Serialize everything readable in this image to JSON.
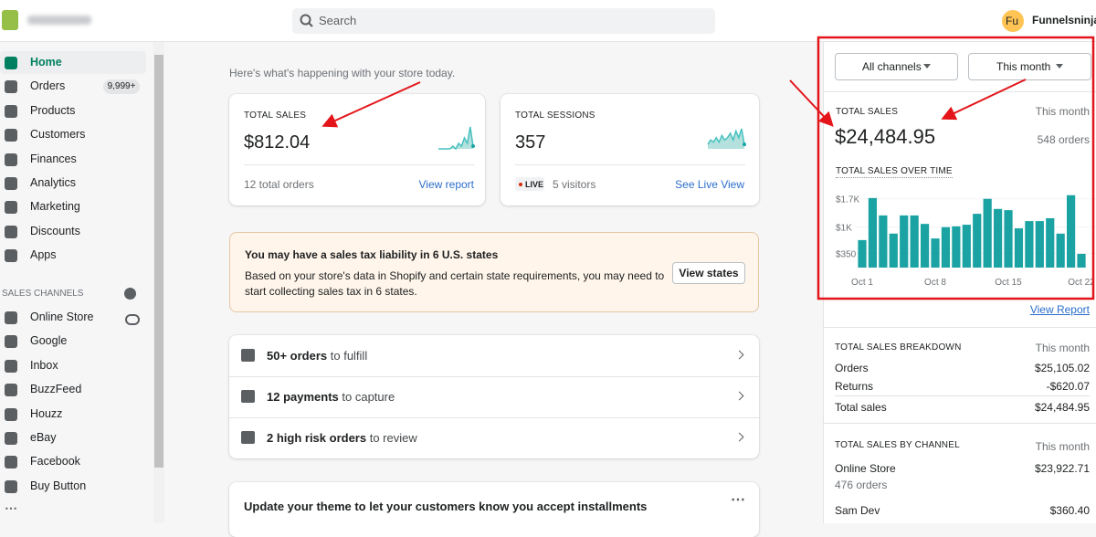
{
  "header": {
    "search_placeholder": "Search",
    "avatar_initials": "Fu",
    "user_name": "Funnelsninja"
  },
  "sidebar": {
    "nav": [
      {
        "label": "Home"
      },
      {
        "label": "Orders",
        "badge": "9,999+"
      },
      {
        "label": "Products"
      },
      {
        "label": "Customers"
      },
      {
        "label": "Finances"
      },
      {
        "label": "Analytics"
      },
      {
        "label": "Marketing"
      },
      {
        "label": "Discounts"
      },
      {
        "label": "Apps"
      }
    ],
    "sales_channels_heading": "SALES CHANNELS",
    "channels": [
      "Online Store",
      "Google",
      "Inbox",
      "BuzzFeed",
      "Houzz",
      "eBay",
      "Facebook",
      "Buy Button"
    ]
  },
  "main": {
    "greeting": "Here's what's happening with your store today.",
    "cards": [
      {
        "label": "TOTAL SALES",
        "value": "$812.04",
        "footer": "12 total orders",
        "link": "View report",
        "sparkline": [
          0,
          0,
          0,
          0,
          0,
          1,
          0,
          2,
          1,
          4,
          2,
          8,
          1
        ]
      },
      {
        "label": "TOTAL SESSIONS",
        "value": "357",
        "live_badge": "LIVE",
        "footer": "5 visitors",
        "link": "See Live View",
        "sparkline": [
          2,
          4,
          3,
          5,
          3,
          6,
          4,
          5,
          7,
          4,
          8,
          5,
          9,
          2
        ]
      }
    ],
    "banner": {
      "title": "You may have a sales tax liability in 6 U.S. states",
      "body": "Based on your store's data in Shopify and certain state requirements, you may need to start collecting sales tax in 6 states.",
      "button": "View states"
    },
    "tasks": [
      {
        "bold": "50+ orders",
        "rest": "to fulfill"
      },
      {
        "bold": "12 payments",
        "rest": "to capture"
      },
      {
        "bold": "2 high risk orders",
        "rest": "to review"
      }
    ],
    "theme_card": {
      "title": "Update your theme to let your customers know you accept installments"
    }
  },
  "right_panel": {
    "filters": [
      "All channels",
      "This month"
    ],
    "total_sales": {
      "label": "TOTAL SALES",
      "period": "This month",
      "value": "$24,484.95",
      "orders": "548 orders"
    },
    "chart": {
      "type": "bar",
      "title": "TOTAL SALES OVER TIME",
      "categories": [
        "Oct 1",
        null,
        null,
        null,
        null,
        null,
        null,
        "Oct 8",
        null,
        null,
        null,
        null,
        null,
        null,
        "Oct 15",
        null,
        null,
        null,
        null,
        null,
        null,
        "Oct 22"
      ],
      "values": [
        680,
        1720,
        1290,
        840,
        1290,
        1290,
        1080,
        720,
        1000,
        1020,
        1060,
        1330,
        1700,
        1450,
        1420,
        970,
        1150,
        1150,
        1220,
        840,
        1790,
        340
      ],
      "color": "#1ba3a3",
      "ylim": [
        0,
        2100
      ],
      "yticks": [
        {
          "value": 350,
          "label": "$350"
        },
        {
          "value": 1000,
          "label": "$1K"
        },
        {
          "value": 1700,
          "label": "$1.7K"
        }
      ]
    },
    "view_report": "View Report",
    "breakdown": {
      "title": "TOTAL SALES BREAKDOWN",
      "period": "This month",
      "rows": [
        [
          "Orders",
          "$25,105.02"
        ],
        [
          "Returns",
          "-$620.07"
        ],
        [
          "Total sales",
          "$24,484.95"
        ]
      ]
    },
    "by_channel": {
      "title": "TOTAL SALES BY CHANNEL",
      "period": "This month",
      "rows": [
        {
          "name": "Online Store",
          "value": "$23,922.71",
          "orders": "476 orders"
        },
        {
          "name": "Sam Dev",
          "value": "$360.40"
        }
      ]
    }
  }
}
